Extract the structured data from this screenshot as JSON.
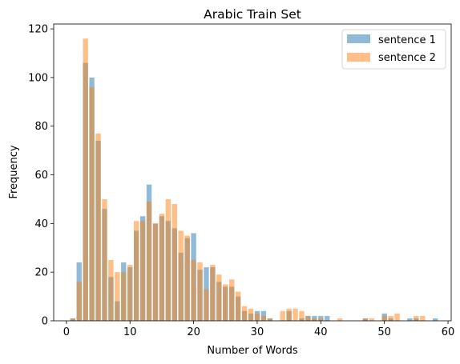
{
  "chart_data": {
    "type": "bar",
    "title": "Arabic Train Set",
    "xlabel": "Number of Words",
    "ylabel": "Frequency",
    "xlim": [
      -2,
      60.5
    ],
    "ylim": [
      0,
      122
    ],
    "xticks": [
      0,
      10,
      20,
      30,
      40,
      50,
      60
    ],
    "yticks": [
      0,
      20,
      40,
      60,
      80,
      100,
      120
    ],
    "grid": false,
    "legend_position": "top-right",
    "series": [
      {
        "name": "sentence 1",
        "color": "#1f77b4",
        "alpha": 0.5,
        "x": [
          1,
          2,
          3,
          4,
          5,
          6,
          7,
          8,
          9,
          10,
          11,
          12,
          13,
          14,
          15,
          16,
          17,
          18,
          19,
          20,
          21,
          22,
          23,
          24,
          25,
          26,
          27,
          28,
          29,
          30,
          31,
          32,
          33,
          34,
          35,
          36,
          37,
          38,
          39,
          40,
          41,
          42,
          43,
          44,
          45,
          46,
          47,
          48,
          49,
          50,
          51,
          52,
          53,
          54,
          55,
          56,
          57,
          58
        ],
        "values": [
          1,
          24,
          106,
          100,
          74,
          46,
          18,
          8,
          24,
          22,
          37,
          43,
          56,
          40,
          43,
          41,
          38,
          28,
          34,
          36,
          21,
          22,
          22,
          16,
          14,
          14,
          10,
          4,
          3,
          4,
          4,
          1,
          0,
          0,
          4,
          0,
          1,
          2,
          2,
          2,
          2,
          0,
          0,
          0,
          0,
          0,
          1,
          0,
          0,
          3,
          1,
          0,
          0,
          1,
          1,
          0,
          0,
          1
        ]
      },
      {
        "name": "sentence 2",
        "color": "#ff7f0e",
        "alpha": 0.5,
        "x": [
          1,
          2,
          3,
          4,
          5,
          6,
          7,
          8,
          9,
          10,
          11,
          12,
          13,
          14,
          15,
          16,
          17,
          18,
          19,
          20,
          21,
          22,
          23,
          24,
          25,
          26,
          27,
          28,
          29,
          30,
          31,
          32,
          33,
          34,
          35,
          36,
          37,
          38,
          39,
          40,
          41,
          42,
          43,
          44,
          45,
          46,
          47,
          48,
          49,
          50,
          51,
          52,
          53,
          54,
          55,
          56,
          57,
          58
        ],
        "values": [
          1,
          16,
          116,
          96,
          77,
          50,
          25,
          20,
          20,
          23,
          41,
          41,
          49,
          40,
          44,
          50,
          48,
          37,
          35,
          25,
          24,
          13,
          23,
          19,
          15,
          17,
          12,
          6,
          5,
          3,
          2,
          1,
          0,
          4,
          5,
          5,
          4,
          2,
          1,
          1,
          0,
          0,
          1,
          0,
          0,
          0,
          1,
          1,
          0,
          2,
          2,
          3,
          0,
          0,
          2,
          2,
          0,
          0
        ]
      }
    ]
  }
}
